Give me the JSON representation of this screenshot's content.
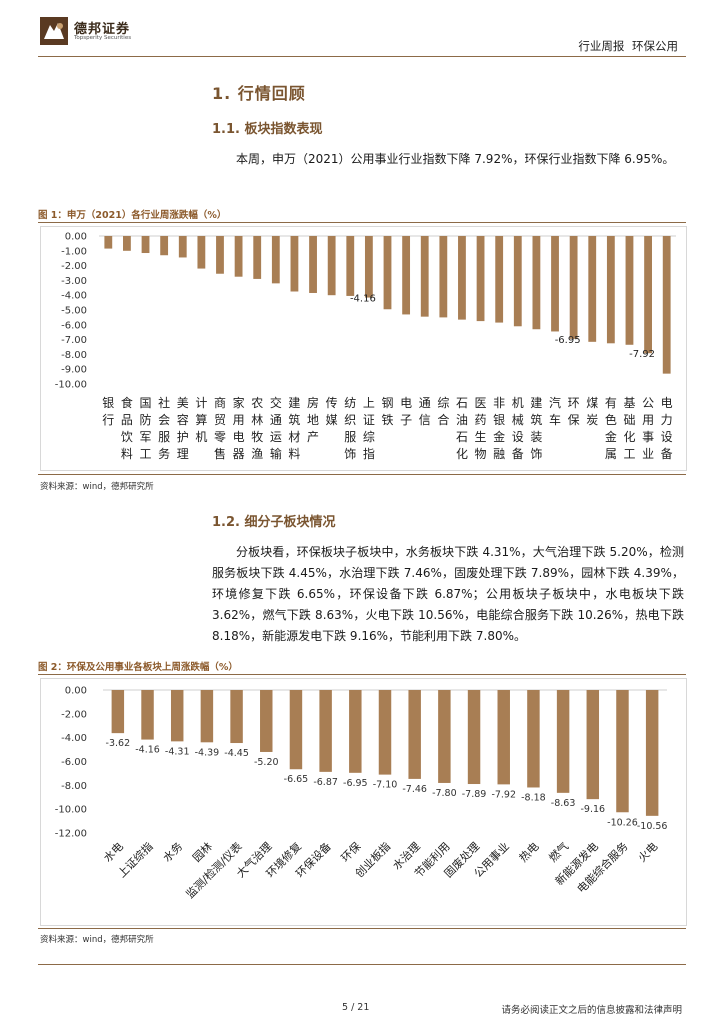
{
  "header": {
    "brand_name": "德邦证券",
    "brand_sub": "Topsperity Securities",
    "report_type": "行业周报",
    "industry": "环保公用",
    "logo_icon": "tdbs-logo-icon"
  },
  "section1": {
    "title": "1. 行情回顾"
  },
  "section1_1": {
    "title": "1.1. 板块指数表现",
    "paragraph": "本周，申万（2021）公用事业行业指数下降 7.92%，环保行业指数下降 6.95%。"
  },
  "figure1": {
    "caption": "图 1：申万（2021）各行业周涨跌幅（%）",
    "source": "资料来源：wind，德邦研究所"
  },
  "section1_2": {
    "title": "1.2. 细分子板块情况",
    "paragraph": "分板块看，环保板块子板块中，水务板块下跌 4.31%，大气治理下跌 5.20%，检测服务板块下跌 4.45%，水治理下跌 7.46%，固废处理下跌 7.89%，园林下跌 4.39%，环境修复下跌 6.65%，环保设备下跌 6.87%；公用板块子板块中，水电板块下跌 3.62%，燃气下跌 8.63%，火电下跌 10.56%，电能综合服务下跌 10.26%，热电下跌 8.18%，新能源发电下跌 9.16%，节能利用下跌 7.80%。"
  },
  "figure2": {
    "caption": "图 2：环保及公用事业各板块上周涨跌幅（%）",
    "source": "资料来源：wind，德邦研究所"
  },
  "footer": {
    "page": "5 / 21",
    "disclaimer": "请务必阅读正文之后的信息披露和法律声明"
  },
  "colors": {
    "bar": "#a87e54",
    "accent": "#7a5530"
  },
  "chart_data": [
    {
      "type": "bar",
      "categories": [
        "银行",
        "食品饮料",
        "国防军工",
        "社会服务",
        "美容护理",
        "计算机",
        "商贸零售",
        "家用电器",
        "农林牧渔",
        "交通运输",
        "建筑材料",
        "房地产",
        "传媒",
        "纺织服饰",
        "上证综指",
        "钢铁",
        "电子",
        "通信",
        "综合",
        "石油石化",
        "医药生物",
        "非银金融",
        "机械设备",
        "建筑装饰",
        "汽车",
        "环保",
        "煤炭",
        "有色金属",
        "基础化工",
        "公用事业",
        "电力设备"
      ],
      "values": [
        -0.85,
        -1.0,
        -1.15,
        -1.3,
        -1.45,
        -2.2,
        -2.55,
        -2.75,
        -2.9,
        -3.2,
        -3.75,
        -3.85,
        -4.0,
        -4.05,
        -4.16,
        -4.95,
        -5.3,
        -5.45,
        -5.5,
        -5.65,
        -5.75,
        -5.85,
        -6.1,
        -6.3,
        -6.45,
        -6.95,
        -7.15,
        -7.25,
        -7.35,
        -7.92,
        -9.3
      ],
      "data_labels": [
        {
          "index": 14,
          "text": "-4.16"
        },
        {
          "index": 25,
          "text": "-6.95"
        },
        {
          "index": 29,
          "text": "-7.92"
        }
      ],
      "ylim": [
        -10,
        0
      ],
      "yticks": [
        "0.00",
        "-1.00",
        "-2.00",
        "-3.00",
        "-4.00",
        "-5.00",
        "-6.00",
        "-7.00",
        "-8.00",
        "-9.00",
        "-10.00"
      ],
      "grid": false,
      "legend": "none"
    },
    {
      "type": "bar",
      "categories": [
        "水电",
        "上证综指",
        "水务",
        "园林",
        "监测/检测/仪表",
        "大气治理",
        "环境修复",
        "环保设备",
        "环保",
        "创业板指",
        "水治理",
        "节能利用",
        "固废处理",
        "公用事业",
        "热电",
        "燃气",
        "新能源发电",
        "电能综合服务",
        "火电"
      ],
      "values": [
        -3.62,
        -4.16,
        -4.31,
        -4.39,
        -4.45,
        -5.2,
        -6.65,
        -6.87,
        -6.95,
        -7.1,
        -7.46,
        -7.8,
        -7.89,
        -7.92,
        -8.18,
        -8.63,
        -9.16,
        -10.26,
        -10.56
      ],
      "data_labels": [
        "-3.62",
        "-4.16",
        "-4.31",
        "-4.39",
        "-4.45",
        "-5.20",
        "-6.65",
        "-6.87",
        "-6.95",
        "-7.10",
        "-7.46",
        "-7.80",
        "-7.89",
        "-7.92",
        "-8.18",
        "-8.63",
        "-9.16",
        "-10.26",
        "-10.56"
      ],
      "ylim": [
        -12,
        0
      ],
      "yticks": [
        "0.00",
        "-2.00",
        "-4.00",
        "-6.00",
        "-8.00",
        "-10.00",
        "-12.00"
      ],
      "grid": false,
      "legend": "none"
    }
  ]
}
